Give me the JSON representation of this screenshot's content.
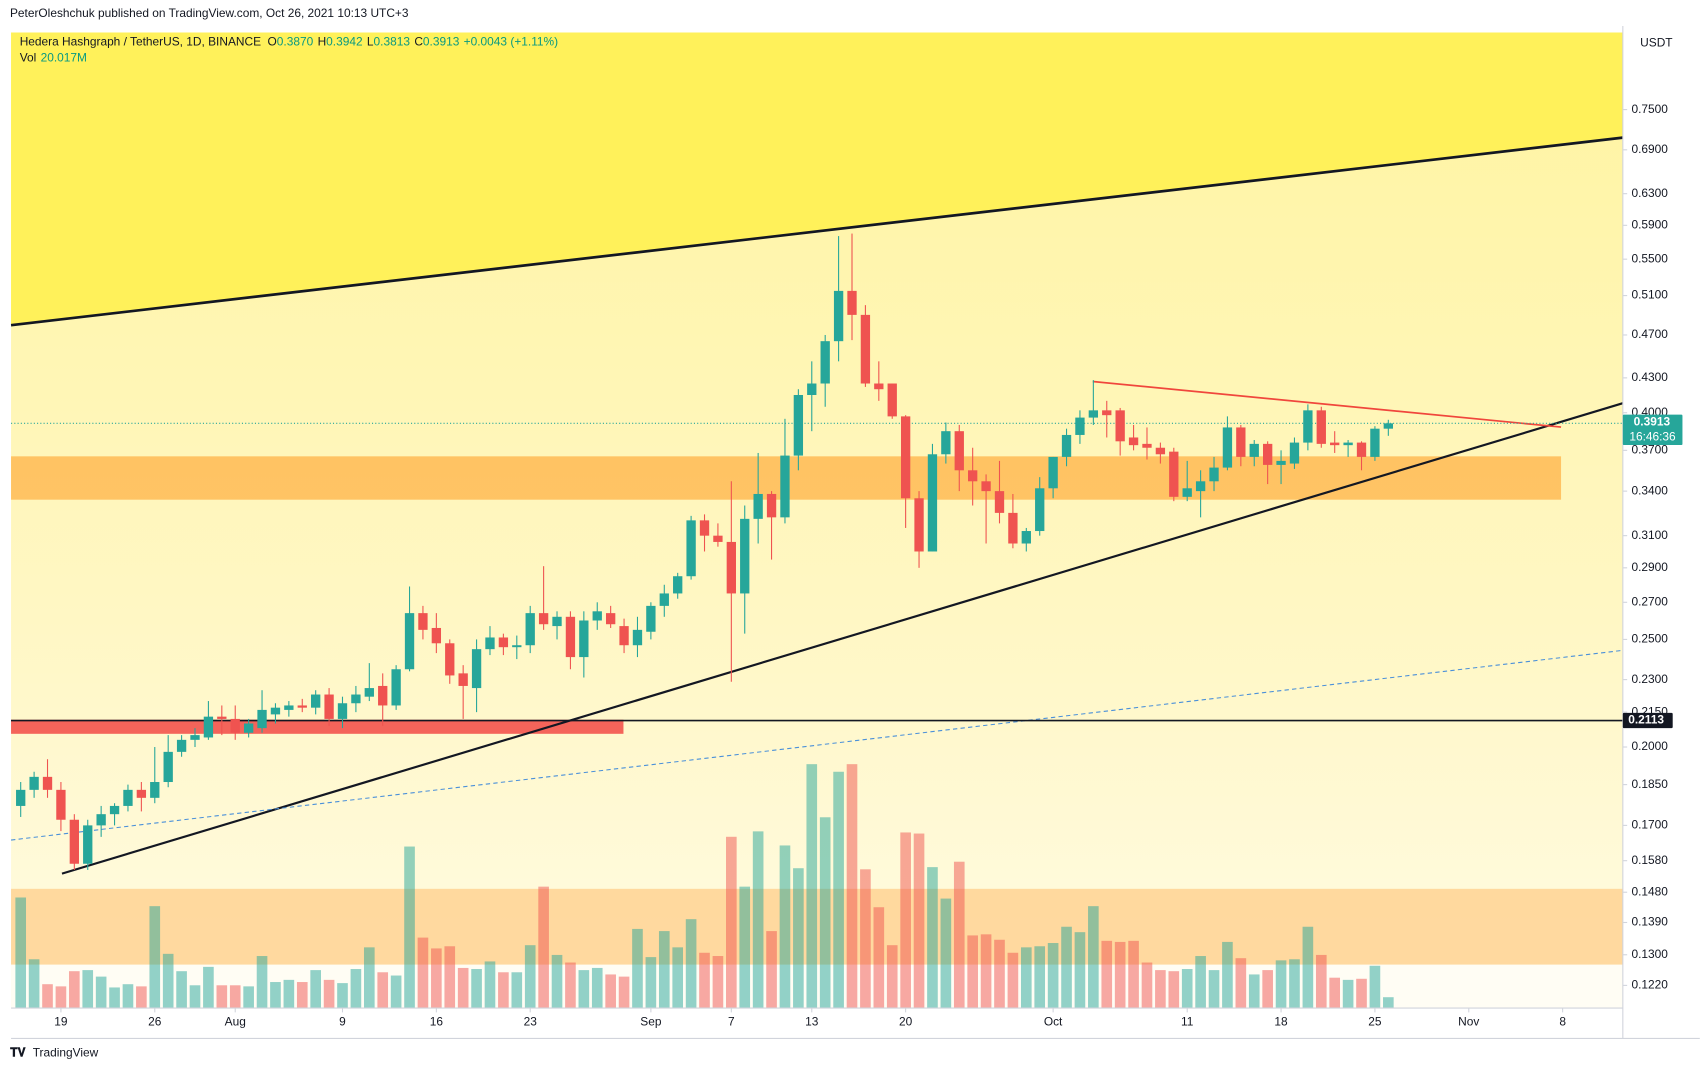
{
  "header": {
    "publisher": "PeterOleshchuk published on TradingView.com, Oct 26, 2021 10:13 UTC+3",
    "brand": "TradingView"
  },
  "chart_data": {
    "type": "candlestick",
    "title": "Hedera Hashgraph / TetherUS, 1D, BINANCE",
    "ohlc_legend": [
      {
        "key": "O",
        "value": "0.3870"
      },
      {
        "key": "H",
        "value": "0.3942"
      },
      {
        "key": "L",
        "value": "0.3813"
      },
      {
        "key": "C",
        "value": "0.3913"
      }
    ],
    "change": "+0.0043 (+1.11%)",
    "volume_label": "Vol",
    "volume_value": "20.017M",
    "currency": "USDT",
    "x": [
      197,
      198,
      199,
      200,
      201,
      202,
      203,
      204,
      205,
      206,
      207,
      208,
      209,
      210,
      211,
      212,
      213,
      214,
      215,
      216,
      217,
      218,
      219,
      220,
      221,
      222,
      223,
      224,
      225,
      226,
      227,
      228,
      229,
      230,
      231,
      232,
      233,
      234,
      235,
      236,
      237,
      238,
      239,
      240,
      241,
      242,
      243,
      244,
      245,
      246,
      247,
      248,
      249,
      250,
      251,
      252,
      253,
      254,
      255,
      256,
      257,
      258,
      259,
      260,
      261,
      262,
      263,
      264,
      265,
      266,
      267,
      268,
      269,
      270,
      271,
      272,
      273,
      274,
      275,
      276,
      277,
      278,
      279,
      280,
      281,
      282,
      283,
      284,
      285,
      286,
      287,
      288,
      289,
      290,
      291,
      292,
      293,
      294,
      295,
      296,
      297,
      298,
      299
    ],
    "open": [
      0.177,
      0.183,
      0.188,
      0.183,
      0.172,
      0.157,
      0.17,
      0.174,
      0.177,
      0.183,
      0.18,
      0.186,
      0.198,
      0.203,
      0.204,
      0.213,
      0.212,
      0.206,
      0.208,
      0.214,
      0.216,
      0.218,
      0.217,
      0.223,
      0.212,
      0.219,
      0.222,
      0.227,
      0.218,
      0.235,
      0.264,
      0.256,
      0.248,
      0.233,
      0.226,
      0.245,
      0.251,
      0.246,
      0.247,
      0.264,
      0.257,
      0.262,
      0.241,
      0.26,
      0.264,
      0.257,
      0.247,
      0.254,
      0.268,
      0.275,
      0.285,
      0.32,
      0.31,
      0.306,
      0.275,
      0.321,
      0.338,
      0.322,
      0.366,
      0.415,
      0.425,
      0.464,
      0.515,
      0.49,
      0.425,
      0.425,
      0.397,
      0.335,
      0.3,
      0.367,
      0.385,
      0.355,
      0.347,
      0.34,
      0.325,
      0.305,
      0.313,
      0.342,
      0.365,
      0.382,
      0.396,
      0.402,
      0.402,
      0.38,
      0.375,
      0.372,
      0.369,
      0.336,
      0.34,
      0.347,
      0.357,
      0.388,
      0.365,
      0.375,
      0.359,
      0.36,
      0.376,
      0.402,
      0.376,
      0.374,
      0.376,
      0.365,
      0.387
    ],
    "high": [
      0.186,
      0.19,
      0.195,
      0.186,
      0.174,
      0.172,
      0.177,
      0.178,
      0.185,
      0.186,
      0.2,
      0.205,
      0.205,
      0.208,
      0.22,
      0.218,
      0.218,
      0.212,
      0.225,
      0.219,
      0.22,
      0.221,
      0.225,
      0.226,
      0.222,
      0.227,
      0.238,
      0.233,
      0.237,
      0.279,
      0.268,
      0.264,
      0.25,
      0.237,
      0.25,
      0.257,
      0.253,
      0.252,
      0.268,
      0.291,
      0.265,
      0.265,
      0.265,
      0.27,
      0.268,
      0.261,
      0.262,
      0.27,
      0.28,
      0.287,
      0.323,
      0.324,
      0.318,
      0.347,
      0.33,
      0.368,
      0.34,
      0.395,
      0.42,
      0.445,
      0.47,
      0.577,
      0.58,
      0.5,
      0.445,
      0.425,
      0.398,
      0.34,
      0.375,
      0.392,
      0.39,
      0.372,
      0.352,
      0.362,
      0.338,
      0.315,
      0.35,
      0.365,
      0.387,
      0.402,
      0.428,
      0.41,
      0.404,
      0.39,
      0.388,
      0.376,
      0.372,
      0.362,
      0.355,
      0.365,
      0.397,
      0.39,
      0.378,
      0.377,
      0.37,
      0.38,
      0.407,
      0.405,
      0.385,
      0.378,
      0.377,
      0.389,
      0.3942
    ],
    "low": [
      0.173,
      0.18,
      0.18,
      0.168,
      0.155,
      0.155,
      0.166,
      0.17,
      0.175,
      0.175,
      0.178,
      0.184,
      0.196,
      0.2,
      0.203,
      0.205,
      0.203,
      0.204,
      0.206,
      0.21,
      0.213,
      0.215,
      0.214,
      0.209,
      0.208,
      0.215,
      0.22,
      0.209,
      0.216,
      0.234,
      0.25,
      0.243,
      0.228,
      0.212,
      0.215,
      0.242,
      0.242,
      0.24,
      0.243,
      0.255,
      0.25,
      0.235,
      0.231,
      0.255,
      0.256,
      0.243,
      0.241,
      0.25,
      0.262,
      0.272,
      0.283,
      0.3,
      0.303,
      0.229,
      0.253,
      0.305,
      0.295,
      0.318,
      0.355,
      0.385,
      0.405,
      0.445,
      0.465,
      0.422,
      0.41,
      0.395,
      0.315,
      0.29,
      0.3,
      0.36,
      0.34,
      0.33,
      0.305,
      0.318,
      0.302,
      0.3,
      0.31,
      0.335,
      0.358,
      0.375,
      0.39,
      0.38,
      0.366,
      0.37,
      0.363,
      0.36,
      0.333,
      0.333,
      0.322,
      0.34,
      0.355,
      0.358,
      0.358,
      0.345,
      0.345,
      0.356,
      0.37,
      0.372,
      0.368,
      0.365,
      0.355,
      0.362,
      0.3813
    ],
    "close": [
      0.183,
      0.188,
      0.183,
      0.172,
      0.157,
      0.17,
      0.174,
      0.177,
      0.183,
      0.18,
      0.186,
      0.198,
      0.203,
      0.205,
      0.213,
      0.212,
      0.206,
      0.21,
      0.216,
      0.217,
      0.218,
      0.217,
      0.223,
      0.212,
      0.219,
      0.223,
      0.226,
      0.218,
      0.235,
      0.264,
      0.255,
      0.248,
      0.232,
      0.227,
      0.245,
      0.251,
      0.246,
      0.247,
      0.264,
      0.258,
      0.262,
      0.241,
      0.26,
      0.265,
      0.258,
      0.247,
      0.255,
      0.268,
      0.275,
      0.285,
      0.32,
      0.31,
      0.306,
      0.275,
      0.321,
      0.338,
      0.322,
      0.366,
      0.415,
      0.425,
      0.464,
      0.515,
      0.49,
      0.425,
      0.42,
      0.397,
      0.335,
      0.3,
      0.367,
      0.385,
      0.355,
      0.347,
      0.34,
      0.325,
      0.305,
      0.313,
      0.342,
      0.365,
      0.382,
      0.396,
      0.402,
      0.398,
      0.377,
      0.374,
      0.372,
      0.367,
      0.336,
      0.342,
      0.347,
      0.357,
      0.388,
      0.365,
      0.375,
      0.359,
      0.362,
      0.376,
      0.402,
      0.375,
      0.374,
      0.376,
      0.365,
      0.387,
      0.3913
    ],
    "volume": [
      204,
      90,
      44,
      40,
      68,
      70,
      58,
      38,
      44,
      40,
      188,
      100,
      68,
      42,
      76,
      42,
      42,
      40,
      96,
      48,
      52,
      48,
      70,
      52,
      46,
      72,
      112,
      66,
      60,
      298,
      130,
      110,
      114,
      74,
      72,
      86,
      66,
      66,
      116,
      224,
      98,
      84,
      70,
      74,
      62,
      58,
      146,
      94,
      142,
      112,
      164,
      102,
      96,
      316,
      224,
      326,
      142,
      300,
      258,
      450,
      352,
      436,
      450,
      256,
      186,
      116,
      324,
      322,
      260,
      202,
      270,
      134,
      136,
      126,
      102,
      112,
      114,
      120,
      150,
      140,
      188,
      124,
      122,
      124,
      84,
      70,
      68,
      72,
      96,
      70,
      122,
      92,
      62,
      70,
      88,
      90,
      150,
      98,
      56,
      52,
      54,
      78,
      20.017
    ],
    "volume_lim": [
      0,
      1800
    ],
    "xlim": [
      196.28,
      316.49
    ],
    "xticks": [
      {
        "value": 200,
        "label": "19"
      },
      {
        "value": 207,
        "label": "26"
      },
      {
        "value": 213,
        "label": "Aug"
      },
      {
        "value": 221,
        "label": "9"
      },
      {
        "value": 228,
        "label": "16"
      },
      {
        "value": 235,
        "label": "23"
      },
      {
        "value": 244,
        "label": "Sep"
      },
      {
        "value": 250,
        "label": "7"
      },
      {
        "value": 256,
        "label": "13"
      },
      {
        "value": 263,
        "label": "20"
      },
      {
        "value": 274,
        "label": "Oct"
      },
      {
        "value": 284,
        "label": "11"
      },
      {
        "value": 291,
        "label": "18"
      },
      {
        "value": 298,
        "label": "25"
      },
      {
        "value": 305,
        "label": "Nov"
      },
      {
        "value": 312,
        "label": "8"
      }
    ],
    "ylim": [
      0.1164,
      0.88
    ],
    "log_scale": true,
    "grid": false,
    "yticks": [
      {
        "value": 0.75,
        "label": "0.7500"
      },
      {
        "value": 0.69,
        "label": "0.6900"
      },
      {
        "value": 0.63,
        "label": "0.6300"
      },
      {
        "value": 0.59,
        "label": "0.5900"
      },
      {
        "value": 0.55,
        "label": "0.5500"
      },
      {
        "value": 0.51,
        "label": "0.5100"
      },
      {
        "value": 0.47,
        "label": "0.4700"
      },
      {
        "value": 0.43,
        "label": "0.4300"
      },
      {
        "value": 0.4,
        "label": "0.4000"
      },
      {
        "value": 0.37,
        "label": "0.3700"
      },
      {
        "value": 0.34,
        "label": "0.3400"
      },
      {
        "value": 0.31,
        "label": "0.3100"
      },
      {
        "value": 0.29,
        "label": "0.2900"
      },
      {
        "value": 0.27,
        "label": "0.2700"
      },
      {
        "value": 0.25,
        "label": "0.2500"
      },
      {
        "value": 0.23,
        "label": "0.2300"
      },
      {
        "value": 0.215,
        "label": "0.2150"
      },
      {
        "value": 0.2,
        "label": "0.2000"
      },
      {
        "value": 0.185,
        "label": "0.1850"
      },
      {
        "value": 0.17,
        "label": "0.1700"
      },
      {
        "value": 0.158,
        "label": "0.1580"
      },
      {
        "value": 0.148,
        "label": "0.1480"
      },
      {
        "value": 0.139,
        "label": "0.1390"
      },
      {
        "value": 0.13,
        "label": "0.1300"
      },
      {
        "value": 0.122,
        "label": "0.1220"
      }
    ],
    "colors": {
      "up": "#26a69a",
      "down": "#ef5350"
    },
    "last_price": 0.3913,
    "countdown": "16:46:36",
    "level": 0.2113
  }
}
